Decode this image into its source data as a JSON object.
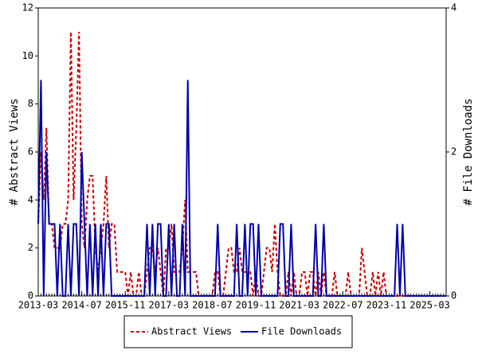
{
  "chart_data": {
    "type": "line",
    "x": [
      "2013-03",
      "2013-04",
      "2013-05",
      "2013-06",
      "2013-07",
      "2013-08",
      "2013-09",
      "2013-10",
      "2013-11",
      "2013-12",
      "2014-01",
      "2014-02",
      "2014-03",
      "2014-04",
      "2014-05",
      "2014-06",
      "2014-07",
      "2014-08",
      "2014-09",
      "2014-10",
      "2014-11",
      "2014-12",
      "2015-01",
      "2015-02",
      "2015-03",
      "2015-04",
      "2015-05",
      "2015-06",
      "2015-07",
      "2015-08",
      "2015-09",
      "2015-10",
      "2015-11",
      "2015-12",
      "2016-01",
      "2016-02",
      "2016-03",
      "2016-04",
      "2016-05",
      "2016-06",
      "2016-07",
      "2016-08",
      "2016-09",
      "2016-10",
      "2016-11",
      "2016-12",
      "2017-01",
      "2017-02",
      "2017-03",
      "2017-04",
      "2017-05",
      "2017-06",
      "2017-07",
      "2017-08",
      "2017-09",
      "2017-10",
      "2017-11",
      "2017-12",
      "2018-01",
      "2018-02",
      "2018-03",
      "2018-04",
      "2018-05",
      "2018-06",
      "2018-07",
      "2018-08",
      "2018-09",
      "2018-10",
      "2018-11",
      "2018-12",
      "2019-01",
      "2019-02",
      "2019-03",
      "2019-04",
      "2019-05",
      "2019-06",
      "2019-07",
      "2019-08",
      "2019-09",
      "2019-10",
      "2019-11",
      "2019-12",
      "2020-01",
      "2020-02",
      "2020-03",
      "2020-04",
      "2020-05",
      "2020-06",
      "2020-07",
      "2020-08",
      "2020-09",
      "2020-10",
      "2020-11",
      "2020-12",
      "2021-01",
      "2021-02",
      "2021-03",
      "2021-04",
      "2021-05",
      "2021-06",
      "2021-07",
      "2021-08",
      "2021-09",
      "2021-10",
      "2021-11",
      "2021-12",
      "2022-01",
      "2022-02",
      "2022-03",
      "2022-04",
      "2022-05",
      "2022-06",
      "2022-07",
      "2022-08",
      "2022-09",
      "2022-10",
      "2022-11",
      "2022-12",
      "2023-01",
      "2023-02",
      "2023-03",
      "2023-04",
      "2023-05",
      "2023-06",
      "2023-07",
      "2023-08",
      "2023-09",
      "2023-10",
      "2023-11",
      "2023-12",
      "2024-01",
      "2024-02",
      "2024-03",
      "2024-04",
      "2024-05",
      "2024-06",
      "2024-07",
      "2024-08",
      "2024-09",
      "2024-10",
      "2024-11",
      "2024-12",
      "2025-01",
      "2025-02",
      "2025-03",
      "2025-04",
      "2025-05",
      "2025-06",
      "2025-07",
      "2025-08",
      "2025-09"
    ],
    "xticks": [
      "2013-03",
      "2014-07",
      "2015-11",
      "2017-03",
      "2018-07",
      "2019-11",
      "2021-03",
      "2022-07",
      "2023-11",
      "2025-03"
    ],
    "ylabel": "# Abstract Views",
    "y2label": "# File Downloads",
    "ylim": [
      0,
      12
    ],
    "yticks": [
      0,
      2,
      4,
      6,
      8,
      10,
      12
    ],
    "y2lim": [
      0,
      4
    ],
    "y2ticks": [
      0,
      2,
      4
    ],
    "legend": "bottom",
    "series": [
      {
        "name": "Abstract Views",
        "color": "#cc0000",
        "dash": true,
        "values": [
          3,
          6,
          4,
          7,
          3,
          3,
          2,
          2,
          2,
          3,
          3,
          4,
          11,
          4,
          7,
          11,
          3,
          2,
          4,
          5,
          5,
          2,
          1,
          2,
          3,
          5,
          2,
          3,
          3,
          1,
          1,
          1,
          1,
          0,
          1,
          0,
          0,
          1,
          0,
          0,
          1,
          2,
          2,
          1,
          2,
          1,
          0,
          2,
          2,
          3,
          1,
          1,
          1,
          2,
          4,
          1,
          1,
          1,
          1,
          0,
          0,
          0,
          0,
          0,
          0,
          1,
          1,
          0,
          0,
          1,
          2,
          2,
          1,
          1,
          2,
          1,
          1,
          1,
          1,
          0,
          1,
          0,
          0,
          1,
          2,
          2,
          1,
          3,
          1,
          0,
          0,
          0,
          1,
          0,
          1,
          0,
          0,
          1,
          1,
          0,
          1,
          1,
          0,
          1,
          0,
          1,
          0,
          0,
          0,
          1,
          0,
          0,
          0,
          0,
          1,
          0,
          0,
          0,
          0,
          2,
          1,
          0,
          0,
          1,
          0,
          1,
          0,
          1,
          0,
          0,
          0,
          0,
          0,
          0,
          0,
          0,
          0,
          0,
          0,
          0,
          0,
          0,
          0,
          0,
          0,
          0,
          0,
          0,
          0,
          0,
          0
        ]
      },
      {
        "name": "File Downloads",
        "color": "#0000aa",
        "axis": "y2",
        "values": [
          1,
          3,
          0,
          2,
          1,
          1,
          1,
          0,
          1,
          0,
          0,
          1,
          0,
          1,
          1,
          0,
          2,
          1,
          0,
          1,
          0,
          1,
          0,
          1,
          0,
          1,
          1,
          0,
          0,
          0,
          0,
          0,
          0,
          0,
          0,
          0,
          0,
          0,
          0,
          0,
          1,
          0,
          1,
          0,
          1,
          1,
          0,
          0,
          1,
          0,
          1,
          0,
          0,
          1,
          0,
          3,
          0,
          0,
          0,
          0,
          0,
          0,
          0,
          0,
          0,
          0,
          1,
          0,
          0,
          0,
          0,
          0,
          0,
          1,
          0,
          0,
          1,
          0,
          1,
          1,
          0,
          1,
          0,
          0,
          0,
          0,
          0,
          0,
          0,
          1,
          1,
          0,
          0,
          1,
          0,
          0,
          0,
          0,
          0,
          0,
          0,
          0,
          1,
          0,
          0,
          1,
          0,
          0,
          0,
          0,
          0,
          0,
          0,
          0,
          0,
          0,
          0,
          0,
          0,
          0,
          0,
          0,
          0,
          0,
          0,
          0,
          0,
          0,
          0,
          0,
          0,
          0,
          1,
          0,
          1,
          0,
          0,
          0,
          0,
          0,
          0,
          0,
          0,
          0,
          0,
          0,
          0,
          0,
          0,
          0,
          0
        ]
      }
    ]
  }
}
